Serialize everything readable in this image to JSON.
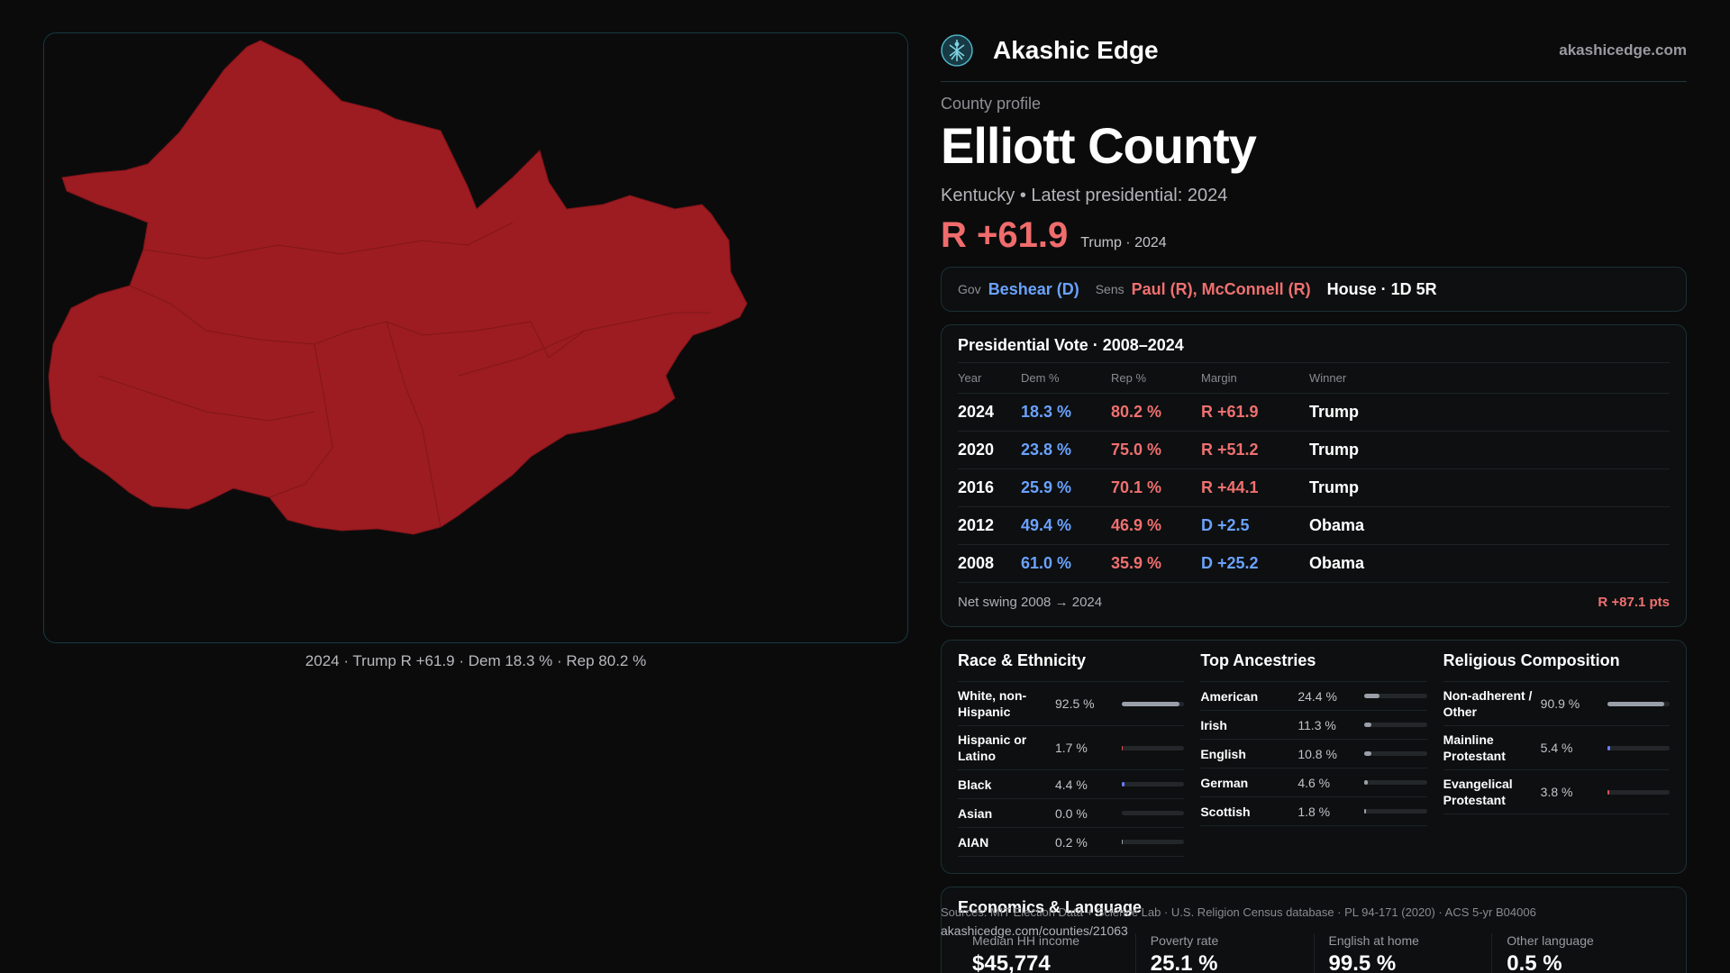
{
  "brand": {
    "name": "Akashic Edge",
    "url": "akashicedge.com"
  },
  "map": {
    "fill": "#9d1c21",
    "caption": "2024 · Trump R +61.9 · Dem 18.3 % · Rep 80.2 %"
  },
  "profile": {
    "eyebrow": "County profile",
    "title": "Elliott County",
    "subtitle": "Kentucky • Latest presidential: 2024",
    "margin": "R +61.9",
    "margin_note": "Trump · 2024"
  },
  "officials": {
    "gov_label": "Gov",
    "gov": "Beshear (D)",
    "sens_label": "Sens",
    "sens": "Paul (R), McConnell (R)",
    "house": "House · 1D 5R"
  },
  "votes": {
    "title": "Presidential Vote · 2008–2024",
    "headers": {
      "year": "Year",
      "dem": "Dem %",
      "rep": "Rep %",
      "margin": "Margin",
      "winner": "Winner"
    },
    "rows": [
      {
        "year": "2024",
        "dem": "18.3 %",
        "rep": "80.2 %",
        "margin": "R +61.9",
        "winner": "Trump"
      },
      {
        "year": "2020",
        "dem": "23.8 %",
        "rep": "75.0 %",
        "margin": "R +51.2",
        "winner": "Trump"
      },
      {
        "year": "2016",
        "dem": "25.9 %",
        "rep": "70.1 %",
        "margin": "R +44.1",
        "winner": "Trump"
      },
      {
        "year": "2012",
        "dem": "49.4 %",
        "rep": "46.9 %",
        "margin": "D +2.5",
        "winner": "Obama"
      },
      {
        "year": "2008",
        "dem": "61.0 %",
        "rep": "35.9 %",
        "margin": "D +25.2",
        "winner": "Obama"
      }
    ],
    "swing_label": "Net swing 2008 → 2024",
    "swing_value": "R +87.1 pts"
  },
  "race": {
    "title": "Race & Ethnicity",
    "items": [
      {
        "label": "White, non-Hispanic",
        "value": "92.5 %",
        "frac": 0.925,
        "color": "#9aa0a8"
      },
      {
        "label": "Hispanic or Latino",
        "value": "1.7 %",
        "frac": 0.017,
        "color": "#e05252"
      },
      {
        "label": "Black",
        "value": "4.4 %",
        "frac": 0.044,
        "color": "#6a7cff"
      },
      {
        "label": "Asian",
        "value": "0.0 %",
        "frac": 0.0,
        "color": "#9aa0a8"
      },
      {
        "label": "AIAN",
        "value": "0.2 %",
        "frac": 0.002,
        "color": "#9aa0a8"
      }
    ]
  },
  "ancestry": {
    "title": "Top Ancestries",
    "items": [
      {
        "label": "American",
        "value": "24.4 %",
        "frac": 0.244,
        "color": "#9aa0a8"
      },
      {
        "label": "Irish",
        "value": "11.3 %",
        "frac": 0.113,
        "color": "#9aa0a8"
      },
      {
        "label": "English",
        "value": "10.8 %",
        "frac": 0.108,
        "color": "#9aa0a8"
      },
      {
        "label": "German",
        "value": "4.6 %",
        "frac": 0.046,
        "color": "#9aa0a8"
      },
      {
        "label": "Scottish",
        "value": "1.8 %",
        "frac": 0.018,
        "color": "#9aa0a8"
      }
    ]
  },
  "religion": {
    "title": "Religious Composition",
    "items": [
      {
        "label": "Non-adherent / Other",
        "value": "90.9 %",
        "frac": 0.909,
        "color": "#9aa0a8"
      },
      {
        "label": "Mainline Protestant",
        "value": "5.4 %",
        "frac": 0.054,
        "color": "#6a7cff"
      },
      {
        "label": "Evangelical Protestant",
        "value": "3.8 %",
        "frac": 0.038,
        "color": "#e05252"
      }
    ]
  },
  "econ": {
    "title": "Economics & Language",
    "stats": [
      {
        "label": "Median HH income",
        "value": "$45,774"
      },
      {
        "label": "Poverty rate",
        "value": "25.1 %"
      },
      {
        "label": "English at home",
        "value": "99.5 %"
      },
      {
        "label": "Other language",
        "value": "0.5 %"
      }
    ]
  },
  "source": {
    "text": "Sources: MIT Election Data + Science Lab · U.S. Religion Census database · PL 94-171 (2020) · ACS 5-yr B04006",
    "url": "akashicedge.com/counties/21063"
  }
}
